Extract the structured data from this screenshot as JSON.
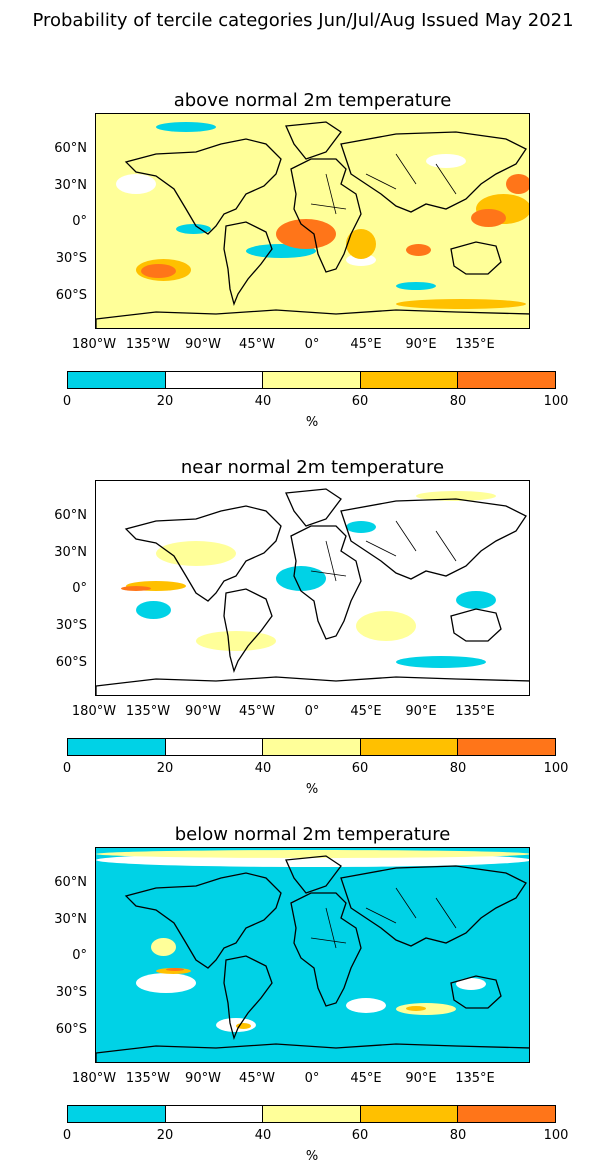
{
  "title": "Probability of tercile categories Jun/Jul/Aug Issued May 2021",
  "colors": {
    "band_0_20": "#00d2e6",
    "band_20_40": "#ffffff",
    "band_40_60": "#ffff99",
    "band_60_80": "#ffc000",
    "band_80_100": "#ff7519",
    "coastline": "#000000"
  },
  "lat_ticks": [
    "60°N",
    "30°N",
    "0°",
    "30°S",
    "60°S"
  ],
  "lon_ticks": [
    "180°W",
    "135°W",
    "90°W",
    "45°W",
    "0°",
    "45°E",
    "90°E",
    "135°E"
  ],
  "colorbar": {
    "ticks": [
      "0",
      "20",
      "40",
      "60",
      "80",
      "100"
    ],
    "unit": "%",
    "bands": [
      "0-20",
      "20-40",
      "40-60",
      "60-80",
      "80-100"
    ]
  },
  "panels": [
    {
      "title": "above normal 2m temperature",
      "dominant_band": "40-60"
    },
    {
      "title": "near normal 2m temperature",
      "dominant_band": "20-40"
    },
    {
      "title": "below normal 2m temperature",
      "dominant_band": "0-20"
    }
  ]
}
